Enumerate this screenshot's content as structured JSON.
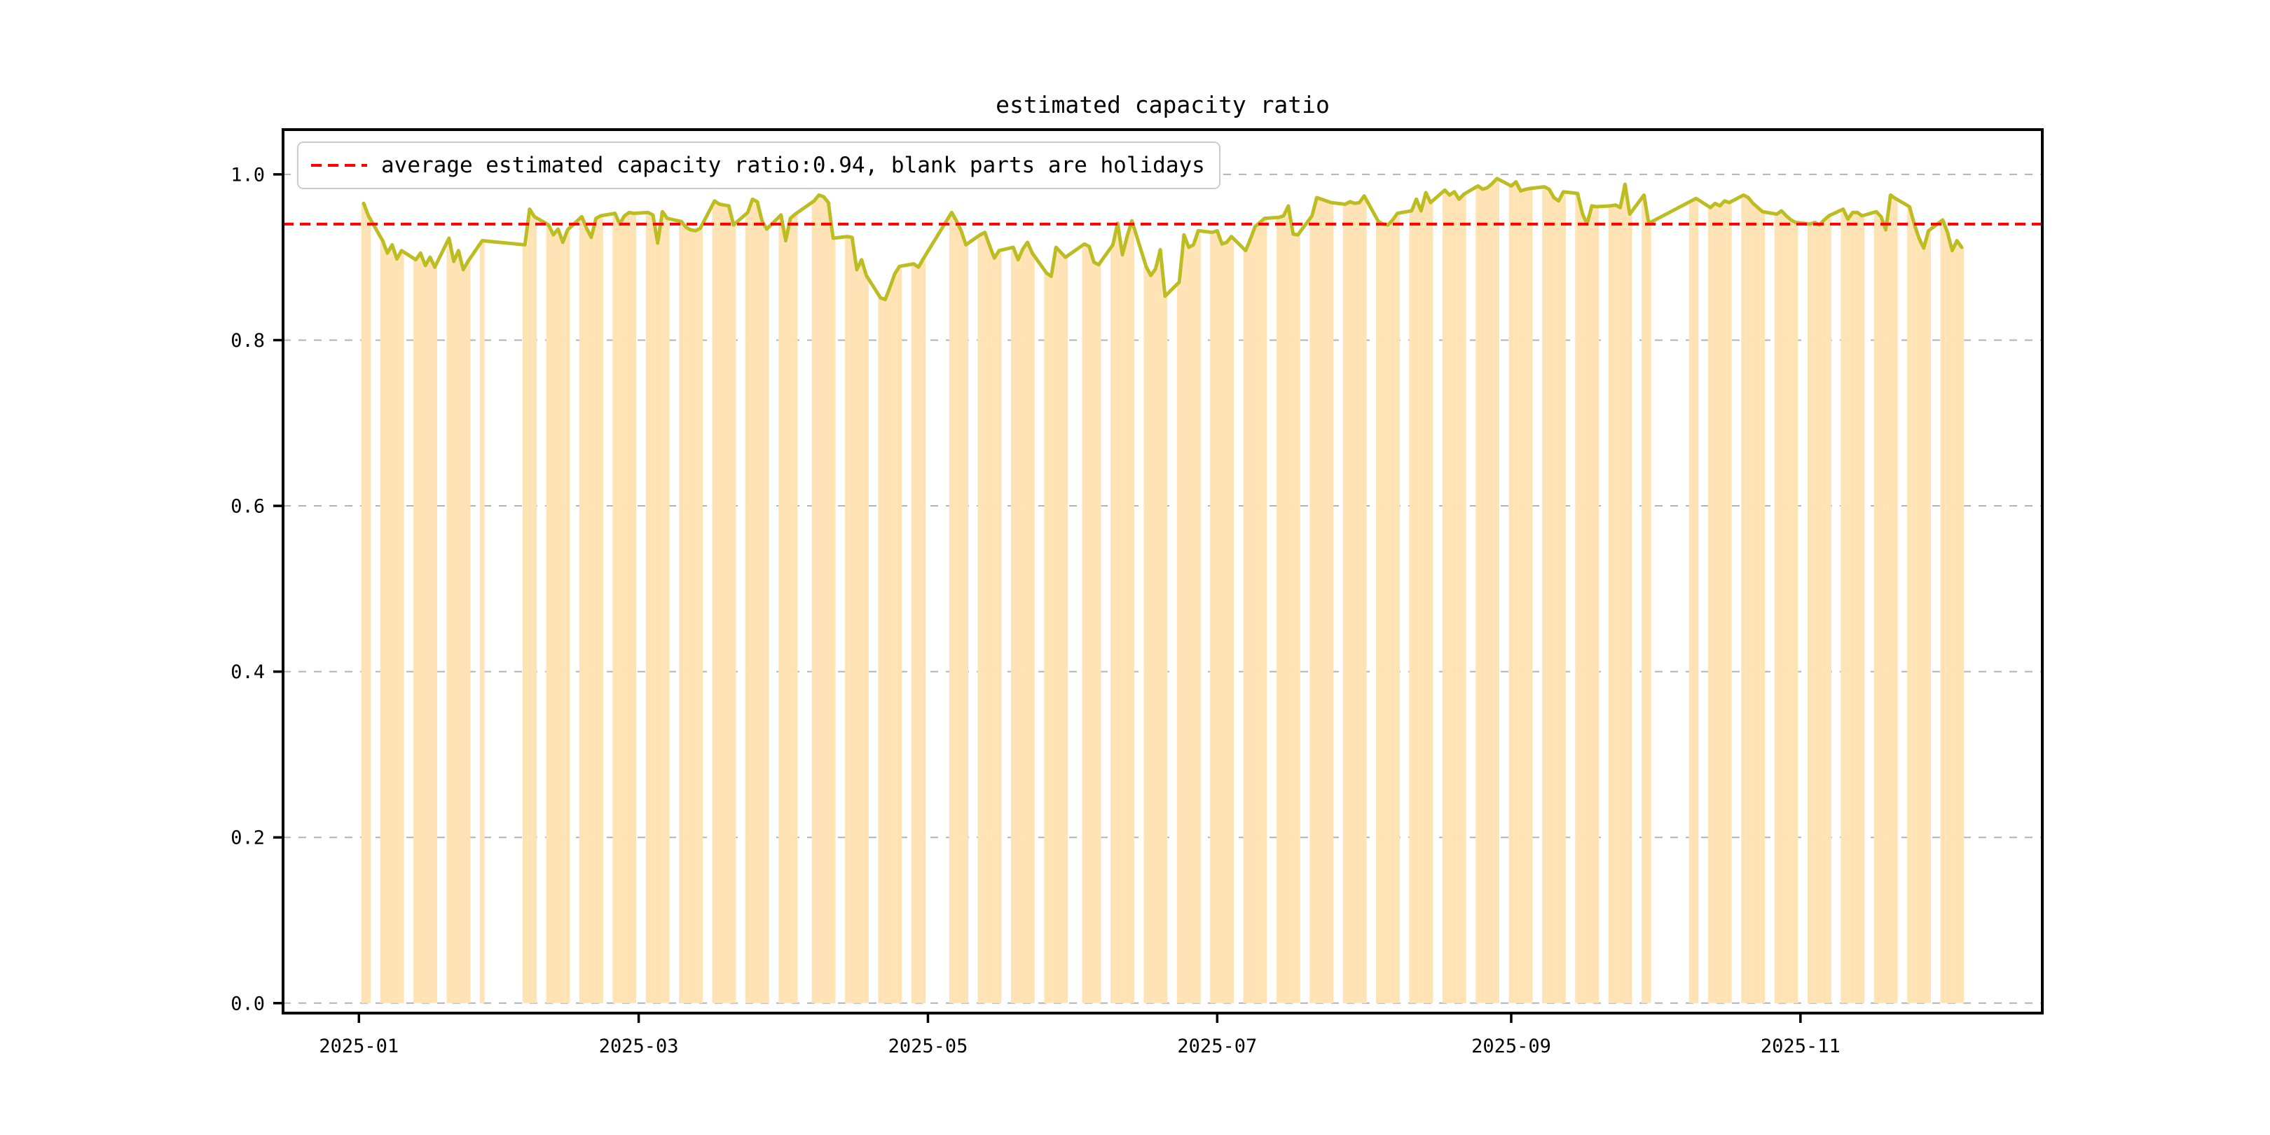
{
  "title": "estimated capacity ratio",
  "legend": {
    "label": "average estimated capacity ratio:0.94, blank parts are holidays"
  },
  "colors": {
    "bar": "#ffe3b5",
    "line": "#bcbd22",
    "average_line": "#ff0000",
    "grid": "#b3b3b3",
    "axis": "#000000",
    "background": "#ffffff",
    "legend_border": "#cccccc",
    "text": "#000000"
  },
  "chart_data": {
    "type": "bar",
    "title": "estimated capacity ratio",
    "series_name": "estimated capacity ratio",
    "average": 0.94,
    "legend_entry": "average estimated capacity ratio:0.94, blank parts are holidays",
    "xlim": [
      "2024-12-16",
      "2025-12-22"
    ],
    "ylim": [
      -0.012,
      1.054
    ],
    "grid": "horizontal dashed",
    "legend_position": "upper left",
    "y_ticks": [
      {
        "value": 0.0,
        "label": "0.0"
      },
      {
        "value": 0.2,
        "label": "0.2"
      },
      {
        "value": 0.4,
        "label": "0.4"
      },
      {
        "value": 0.6,
        "label": "0.6"
      },
      {
        "value": 0.8,
        "label": "0.8"
      },
      {
        "value": 1.0,
        "label": "1.0"
      }
    ],
    "x_ticks": [
      {
        "date": "2025-01-01",
        "label": "2025-01"
      },
      {
        "date": "2025-03-01",
        "label": "2025-03"
      },
      {
        "date": "2025-05-01",
        "label": "2025-05"
      },
      {
        "date": "2025-07-01",
        "label": "2025-07"
      },
      {
        "date": "2025-09-01",
        "label": "2025-09"
      },
      {
        "date": "2025-11-01",
        "label": "2025-11"
      }
    ],
    "x": [
      "2025-01-02",
      "2025-01-03",
      "2025-01-06",
      "2025-01-07",
      "2025-01-08",
      "2025-01-09",
      "2025-01-10",
      "2025-01-13",
      "2025-01-14",
      "2025-01-15",
      "2025-01-16",
      "2025-01-17",
      "2025-01-20",
      "2025-01-21",
      "2025-01-22",
      "2025-01-23",
      "2025-01-24",
      "2025-01-27",
      "2025-02-05",
      "2025-02-06",
      "2025-02-07",
      "2025-02-10",
      "2025-02-11",
      "2025-02-12",
      "2025-02-13",
      "2025-02-14",
      "2025-02-17",
      "2025-02-18",
      "2025-02-19",
      "2025-02-20",
      "2025-02-21",
      "2025-02-24",
      "2025-02-25",
      "2025-02-26",
      "2025-02-27",
      "2025-02-28",
      "2025-03-03",
      "2025-03-04",
      "2025-03-05",
      "2025-03-06",
      "2025-03-07",
      "2025-03-10",
      "2025-03-11",
      "2025-03-12",
      "2025-03-13",
      "2025-03-14",
      "2025-03-17",
      "2025-03-18",
      "2025-03-19",
      "2025-03-20",
      "2025-03-21",
      "2025-03-24",
      "2025-03-25",
      "2025-03-26",
      "2025-03-27",
      "2025-03-28",
      "2025-03-31",
      "2025-04-01",
      "2025-04-02",
      "2025-04-03",
      "2025-04-07",
      "2025-04-08",
      "2025-04-09",
      "2025-04-10",
      "2025-04-11",
      "2025-04-14",
      "2025-04-15",
      "2025-04-16",
      "2025-04-17",
      "2025-04-18",
      "2025-04-21",
      "2025-04-22",
      "2025-04-23",
      "2025-04-24",
      "2025-04-25",
      "2025-04-28",
      "2025-04-29",
      "2025-04-30",
      "2025-05-06",
      "2025-05-07",
      "2025-05-08",
      "2025-05-09",
      "2025-05-12",
      "2025-05-13",
      "2025-05-14",
      "2025-05-15",
      "2025-05-16",
      "2025-05-19",
      "2025-05-20",
      "2025-05-21",
      "2025-05-22",
      "2025-05-23",
      "2025-05-26",
      "2025-05-27",
      "2025-05-28",
      "2025-05-29",
      "2025-05-30",
      "2025-06-03",
      "2025-06-04",
      "2025-06-05",
      "2025-06-06",
      "2025-06-09",
      "2025-06-10",
      "2025-06-11",
      "2025-06-12",
      "2025-06-13",
      "2025-06-16",
      "2025-06-17",
      "2025-06-18",
      "2025-06-19",
      "2025-06-20",
      "2025-06-23",
      "2025-06-24",
      "2025-06-25",
      "2025-06-26",
      "2025-06-27",
      "2025-06-30",
      "2025-07-01",
      "2025-07-02",
      "2025-07-03",
      "2025-07-04",
      "2025-07-07",
      "2025-07-08",
      "2025-07-09",
      "2025-07-10",
      "2025-07-11",
      "2025-07-14",
      "2025-07-15",
      "2025-07-16",
      "2025-07-17",
      "2025-07-18",
      "2025-07-21",
      "2025-07-22",
      "2025-07-23",
      "2025-07-24",
      "2025-07-25",
      "2025-07-28",
      "2025-07-29",
      "2025-07-30",
      "2025-07-31",
      "2025-08-01",
      "2025-08-04",
      "2025-08-05",
      "2025-08-06",
      "2025-08-07",
      "2025-08-08",
      "2025-08-11",
      "2025-08-12",
      "2025-08-13",
      "2025-08-14",
      "2025-08-15",
      "2025-08-18",
      "2025-08-19",
      "2025-08-20",
      "2025-08-21",
      "2025-08-22",
      "2025-08-25",
      "2025-08-26",
      "2025-08-27",
      "2025-08-28",
      "2025-08-29",
      "2025-09-01",
      "2025-09-02",
      "2025-09-03",
      "2025-09-04",
      "2025-09-05",
      "2025-09-08",
      "2025-09-09",
      "2025-09-10",
      "2025-09-11",
      "2025-09-12",
      "2025-09-15",
      "2025-09-16",
      "2025-09-17",
      "2025-09-18",
      "2025-09-19",
      "2025-09-22",
      "2025-09-23",
      "2025-09-24",
      "2025-09-25",
      "2025-09-26",
      "2025-09-29",
      "2025-09-30",
      "2025-10-09",
      "2025-10-10",
      "2025-10-13",
      "2025-10-14",
      "2025-10-15",
      "2025-10-16",
      "2025-10-17",
      "2025-10-20",
      "2025-10-21",
      "2025-10-22",
      "2025-10-23",
      "2025-10-24",
      "2025-10-27",
      "2025-10-28",
      "2025-10-29",
      "2025-10-30",
      "2025-10-31",
      "2025-11-03",
      "2025-11-04",
      "2025-11-05",
      "2025-11-06",
      "2025-11-07",
      "2025-11-10",
      "2025-11-11",
      "2025-11-12",
      "2025-11-13",
      "2025-11-14",
      "2025-11-17",
      "2025-11-18",
      "2025-11-19",
      "2025-11-20",
      "2025-11-21",
      "2025-11-24",
      "2025-11-25",
      "2025-11-26",
      "2025-11-27",
      "2025-11-28",
      "2025-12-01",
      "2025-12-02",
      "2025-12-03",
      "2025-12-04",
      "2025-12-05"
    ],
    "values": [
      0.965,
      0.95,
      0.92,
      0.905,
      0.915,
      0.898,
      0.908,
      0.897,
      0.905,
      0.89,
      0.9,
      0.888,
      0.923,
      0.895,
      0.908,
      0.885,
      0.895,
      0.92,
      0.915,
      0.958,
      0.949,
      0.939,
      0.927,
      0.934,
      0.918,
      0.933,
      0.949,
      0.935,
      0.924,
      0.947,
      0.95,
      0.953,
      0.94,
      0.95,
      0.954,
      0.953,
      0.954,
      0.951,
      0.917,
      0.955,
      0.947,
      0.943,
      0.936,
      0.933,
      0.932,
      0.935,
      0.968,
      0.964,
      0.963,
      0.962,
      0.939,
      0.954,
      0.97,
      0.967,
      0.944,
      0.934,
      0.951,
      0.92,
      0.947,
      0.952,
      0.968,
      0.975,
      0.973,
      0.966,
      0.923,
      0.925,
      0.924,
      0.885,
      0.897,
      0.878,
      0.851,
      0.849,
      0.864,
      0.88,
      0.889,
      0.892,
      0.888,
      0.898,
      0.954,
      0.944,
      0.932,
      0.915,
      0.927,
      0.93,
      0.914,
      0.899,
      0.908,
      0.912,
      0.897,
      0.91,
      0.918,
      0.905,
      0.881,
      0.877,
      0.912,
      0.906,
      0.9,
      0.916,
      0.913,
      0.894,
      0.891,
      0.915,
      0.941,
      0.903,
      0.925,
      0.944,
      0.889,
      0.878,
      0.886,
      0.909,
      0.853,
      0.87,
      0.927,
      0.912,
      0.915,
      0.932,
      0.93,
      0.932,
      0.916,
      0.918,
      0.925,
      0.908,
      0.922,
      0.937,
      0.942,
      0.947,
      0.948,
      0.95,
      0.962,
      0.928,
      0.927,
      0.95,
      0.972,
      0.97,
      0.968,
      0.966,
      0.964,
      0.967,
      0.965,
      0.966,
      0.974,
      0.943,
      0.94,
      0.939,
      0.945,
      0.953,
      0.956,
      0.97,
      0.956,
      0.978,
      0.966,
      0.981,
      0.975,
      0.979,
      0.97,
      0.976,
      0.986,
      0.982,
      0.984,
      0.989,
      0.995,
      0.986,
      0.991,
      0.98,
      0.982,
      0.983,
      0.985,
      0.982,
      0.972,
      0.968,
      0.979,
      0.977,
      0.953,
      0.94,
      0.962,
      0.961,
      0.962,
      0.963,
      0.96,
      0.988,
      0.952,
      0.975,
      0.941,
      0.968,
      0.971,
      0.96,
      0.965,
      0.962,
      0.968,
      0.966,
      0.975,
      0.972,
      0.965,
      0.96,
      0.955,
      0.952,
      0.956,
      0.95,
      0.945,
      0.942,
      0.94,
      0.942,
      0.939,
      0.945,
      0.95,
      0.958,
      0.946,
      0.954,
      0.954,
      0.95,
      0.955,
      0.949,
      0.933,
      0.975,
      0.971,
      0.961,
      0.94,
      0.923,
      0.911,
      0.932,
      0.945,
      0.93,
      0.908,
      0.92,
      0.912
    ]
  }
}
